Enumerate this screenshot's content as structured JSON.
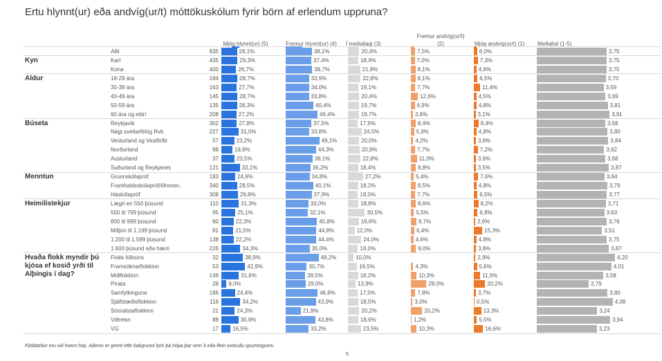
{
  "title": "Ertu hlynnt(ur) eða andvíg(ur/t) móttökuskólum fyrir börn af erlendum uppruna?",
  "columns": [
    {
      "key": "c5",
      "label": "Mjög hlynnt(ur) (5)",
      "color": "#2a74e0"
    },
    {
      "key": "c4",
      "label": "Fremur hlynnt(ur) (4)",
      "color": "#6a9ee8"
    },
    {
      "key": "c3",
      "label": "Í meðallagi (3)",
      "color": "#d9d9d9"
    },
    {
      "key": "c2",
      "label": "Fremur andvíg(ur/t) (2)",
      "label_line1": "Fremur andvíg(ur/t)",
      "label_line2": "(2)",
      "color": "#f0a06a"
    },
    {
      "key": "c1",
      "label": "Mjög andvíg(ur/t) (1)",
      "color": "#ec7a2a"
    },
    {
      "key": "mean",
      "label": "Meðaltal (1-5)",
      "color": "#b3b3b3"
    }
  ],
  "footnote": "Fjöldatölur eru við hvern hóp. Aðeins er greint eftir bakgrunni fyrir þá hópa þar sem 5 eða fleiri svöruðu spurningunni.",
  "page_number": "5",
  "chart_data": {
    "type": "table",
    "title": "Ertu hlynnt(ur) eða andvíg(ur/t) móttökuskólum fyrir börn af erlendum uppruna?",
    "series_names": [
      "Mjög hlynnt(ur) (5)",
      "Fremur hlynnt(ur) (4)",
      "Í meðallagi (3)",
      "Fremur andvíg(ur/t) (2)",
      "Mjög andvíg(ur/t) (1)",
      "Meðaltal (1-5)"
    ],
    "groups": [
      {
        "name": "",
        "rows": [
          {
            "label": "Allir",
            "n": "835",
            "c5": "28,1%",
            "c4": "38,1%",
            "c3": "20,4%",
            "c2": "7,5%",
            "c1": "6,0%",
            "mean": "3,75"
          }
        ]
      },
      {
        "name": "Kyn",
        "rows": [
          {
            "label": "Karl",
            "n": "435",
            "c5": "29,3%",
            "c4": "37,4%",
            "c3": "18,9%",
            "c2": "7,0%",
            "c1": "7,3%",
            "mean": "3,75"
          },
          {
            "label": "Kona",
            "n": "400",
            "c5": "26,7%",
            "c4": "38,7%",
            "c3": "21,9%",
            "c2": "8,1%",
            "c1": "4,6%",
            "mean": "3,75"
          }
        ]
      },
      {
        "name": "Aldur",
        "rows": [
          {
            "label": "18-29 ára",
            "n": "184",
            "c5": "28,7%",
            "c4": "33,9%",
            "c3": "22,8%",
            "c2": "8,1%",
            "c1": "6,5%",
            "mean": "3,70"
          },
          {
            "label": "30-39 ára",
            "n": "163",
            "c5": "27,7%",
            "c4": "34,0%",
            "c3": "19,1%",
            "c2": "7,7%",
            "c1": "11,4%",
            "mean": "3,59"
          },
          {
            "label": "40-49 ára",
            "n": "145",
            "c5": "28,7%",
            "c4": "33,8%",
            "c3": "20,4%",
            "c2": "12,6%",
            "c1": "4,5%",
            "mean": "3,69"
          },
          {
            "label": "50-59 ára",
            "n": "135",
            "c5": "28,3%",
            "c4": "40,4%",
            "c3": "19,7%",
            "c2": "6,9%",
            "c1": "4,8%",
            "mean": "3,81"
          },
          {
            "label": "60 ára og eldri",
            "n": "208",
            "c5": "27,2%",
            "c4": "46,4%",
            "c3": "19,7%",
            "c2": "3,6%",
            "c1": "3,1%",
            "mean": "3,91"
          }
        ]
      },
      {
        "name": "Búseta",
        "rows": [
          {
            "label": "Reykjavík",
            "n": "302",
            "c5": "27,8%",
            "c4": "37,5%",
            "c3": "17,9%",
            "c2": "8,4%",
            "c1": "8,4%",
            "mean": "3,68"
          },
          {
            "label": "Nágr.sveitarfélög Rvk.",
            "n": "227",
            "c5": "31,0%",
            "c4": "33,8%",
            "c3": "24,5%",
            "c2": "5,9%",
            "c1": "4,8%",
            "mean": "3,80"
          },
          {
            "label": "Vesturland og Vestfirðir",
            "n": "57",
            "c5": "23,2%",
            "c4": "49,1%",
            "c3": "20,0%",
            "c2": "4,2%",
            "c1": "3,6%",
            "mean": "3,84"
          },
          {
            "label": "Norðurland",
            "n": "88",
            "c5": "19,9%",
            "c4": "44,3%",
            "c3": "20,9%",
            "c2": "7,7%",
            "c1": "7,2%",
            "mean": "3,62"
          },
          {
            "label": "Austurland",
            "n": "37",
            "c5": "23,5%",
            "c4": "39,1%",
            "c3": "22,8%",
            "c2": "11,0%",
            "c1": "3,6%",
            "mean": "3,68"
          },
          {
            "label": "Suðurland og Reykjanes",
            "n": "121",
            "c5": "33,1%",
            "c4": "36,2%",
            "c3": "18,4%",
            "c2": "8,8%",
            "c1": "3,5%",
            "mean": "3,87"
          }
        ]
      },
      {
        "name": "Menntun",
        "rows": [
          {
            "label": "Grunnskólapróf",
            "n": "183",
            "c5": "24,9%",
            "c4": "34,8%",
            "c3": "27,2%",
            "c2": "5,4%",
            "c1": "7,6%",
            "mean": "3,64"
          },
          {
            "label": "Framhaldsskólapróf/iðnmen..",
            "n": "340",
            "c5": "28,5%",
            "c4": "40,1%",
            "c3": "18,2%",
            "c2": "8,5%",
            "c1": "4,8%",
            "mean": "3,79"
          },
          {
            "label": "Háskólapróf",
            "n": "308",
            "c5": "29,8%",
            "c4": "37,9%",
            "c3": "18,0%",
            "c2": "7,7%",
            "c1": "6,5%",
            "mean": "3,77"
          }
        ]
      },
      {
        "name": "Heimilistekjur",
        "rows": [
          {
            "label": "Lægri en 550 þúsund",
            "n": "110",
            "c5": "31,3%",
            "c4": "33,0%",
            "c3": "18,8%",
            "c2": "8,6%",
            "c1": "8,2%",
            "mean": "3,71"
          },
          {
            "label": "550 til 799 þúsund",
            "n": "95",
            "c5": "25,1%",
            "c4": "32,1%",
            "c3": "30,5%",
            "c2": "5,5%",
            "c1": "6,8%",
            "mean": "3,63"
          },
          {
            "label": "800 til 999 þúsund",
            "n": "80",
            "c5": "22,3%",
            "c4": "45,8%",
            "c3": "19,6%",
            "c2": "9,7%",
            "c1": "2,6%",
            "mean": "3,76"
          },
          {
            "label": "Milljón til 1.199 þúsund",
            "n": "81",
            "c5": "21,5%",
            "c4": "44,8%",
            "c3": "12,0%",
            "c2": "6,4%",
            "c1": "15,3%",
            "mean": "3,51"
          },
          {
            "label": "1.200 til 1.599 þúsund",
            "n": "138",
            "c5": "22,2%",
            "c4": "44,4%",
            "c3": "24,0%",
            "c2": "4,6%",
            "c1": "4,8%",
            "mean": "3,75"
          },
          {
            "label": "1.600 þúsund eða hærri",
            "n": "226",
            "c5": "34,3%",
            "c4": "35,0%",
            "c3": "18,0%",
            "c2": "9,0%",
            "c1": "3,8%",
            "mean": "3,87"
          }
        ]
      },
      {
        "name": "Hvaða flokk myndir þú kjósa ef kosið yrði til Alþingis í dag?",
        "rows": [
          {
            "label": "Flokk fólksins",
            "n": "32",
            "c5": "38,9%",
            "c4": "48,2%",
            "c3": "10,0%",
            "c2": "",
            "c1": "2,9%",
            "mean": "4,20"
          },
          {
            "label": "Framsóknarflokkinn",
            "n": "53",
            "c5": "42,9%",
            "c4": "30,7%",
            "c3": "16,5%",
            "c2": "4,3%",
            "c1": "5,6%",
            "mean": "4,01"
          },
          {
            "label": "Miðflokkinn",
            "n": "149",
            "c5": "31,6%",
            "c4": "28,5%",
            "c3": "18,2%",
            "c2": "10,3%",
            "c1": "11,5%",
            "mean": "3,58"
          },
          {
            "label": "Pírata",
            "n": "28",
            "c5": "9,0%",
            "c4": "29,0%",
            "c3": "13,9%",
            "c2": "28,0%",
            "c1": "20,2%",
            "mean": "2,79"
          },
          {
            "label": "Samfylkinguna",
            "n": "186",
            "c5": "24,4%",
            "c4": "46,6%",
            "c3": "17,5%",
            "c2": "7,8%",
            "c1": "3,7%",
            "mean": "3,80"
          },
          {
            "label": "Sjálfstæðisflokkinn",
            "n": "116",
            "c5": "34,2%",
            "c4": "43,9%",
            "c3": "18,5%",
            "c2": "3,0%",
            "c1": "0,5%",
            "mean": "4,08"
          },
          {
            "label": "Sósíalistaflokkinn",
            "n": "21",
            "c5": "24,3%",
            "c4": "21,9%",
            "c3": "20,2%",
            "c2": "20,2%",
            "c1": "13,3%",
            "mean": "3,24"
          },
          {
            "label": "Viðreisn",
            "n": "88",
            "c5": "30,9%",
            "c4": "43,8%",
            "c3": "18,6%",
            "c2": "1,2%",
            "c1": "5,5%",
            "mean": "3,94"
          },
          {
            "label": "VG",
            "n": "17",
            "c5": "16,5%",
            "c4": "33,2%",
            "c3": "23,5%",
            "c2": "10,3%",
            "c1": "16,6%",
            "mean": "3,23"
          }
        ]
      }
    ]
  }
}
